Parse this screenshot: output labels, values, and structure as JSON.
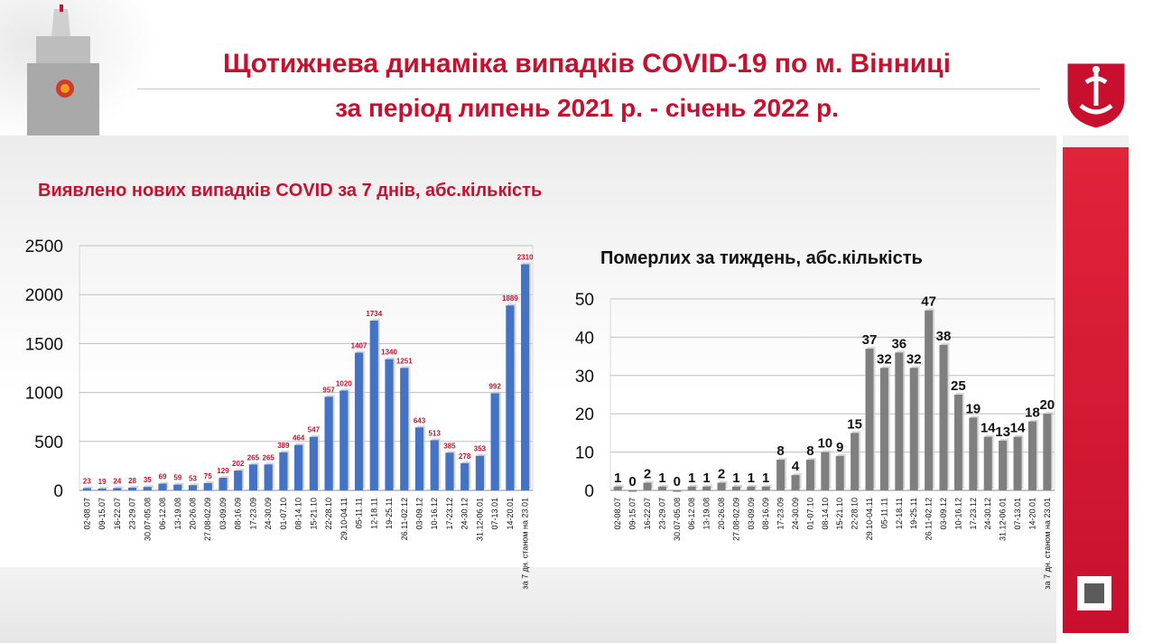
{
  "slide": {
    "title_line1": "Щотижнева динаміка випадків COVID-19 по м. Вінниці",
    "title_line2": "за період липень 2021 р. - січень 2022 р."
  },
  "chart_data": [
    {
      "type": "bar",
      "title": "Виявлено нових випадків COVID за 7 днів, абс.кількість",
      "color": "#4472c4",
      "label_color": "#c8102e",
      "ylim": [
        0,
        2500
      ],
      "yticks": [
        "0",
        "500",
        "1000",
        "1500",
        "2000",
        "2500"
      ],
      "grid": true,
      "categories": [
        "02-08.07",
        "09-15.07",
        "16-22.07",
        "23-29.07",
        "30.07-05.08",
        "06-12.08",
        "13-19.08",
        "20-26.08",
        "27.08-02.09",
        "03-09.09",
        "08-16.09",
        "17-23.09",
        "24-30.09",
        "01-07.10",
        "08-14.10",
        "15-21.10",
        "22-28.10",
        "29.10-04.11",
        "05-11.11",
        "12-18.11",
        "19-25.11",
        "26.11-02.12",
        "03-09.12",
        "10-16.12",
        "17-23.12",
        "24-30.12",
        "31.12-06.01",
        "07-13.01",
        "14-20.01",
        "за 7 дн. станом на 23.01"
      ],
      "values": [
        23,
        19,
        24,
        28,
        35,
        69,
        59,
        53,
        75,
        129,
        202,
        265,
        265,
        389,
        464,
        547,
        957,
        1020,
        1407,
        1734,
        1340,
        1251,
        643,
        513,
        385,
        278,
        353,
        992,
        1889,
        2310
      ]
    },
    {
      "type": "bar",
      "title": "Померлих за тиждень, абс.кількість",
      "color": "#7f7f7f",
      "label_color": "#111111",
      "ylim": [
        0,
        50
      ],
      "yticks": [
        "0",
        "10",
        "20",
        "30",
        "40",
        "50"
      ],
      "grid": true,
      "categories": [
        "02-08.07",
        "09-15.07",
        "16-22.07",
        "23-29.07",
        "30.07-05.08",
        "06-12.08",
        "13-19.08",
        "20-26.08",
        "27.08-02.09",
        "03-09.09",
        "08-16.09",
        "17-23.09",
        "24-30.09",
        "01-07.10",
        "08-14.10",
        "15-21.10",
        "22-28.10",
        "29.10-04.11",
        "05-11.11",
        "12-18.11",
        "19-25.11",
        "26.11-02.12",
        "03-09.12",
        "10-16.12",
        "17-23.12",
        "24-30.12",
        "31.12-06.01",
        "07-13.01",
        "14-20.01",
        "за 7 дн. станом на 23.01"
      ],
      "values": [
        1,
        0,
        2,
        1,
        0,
        1,
        1,
        2,
        1,
        1,
        1,
        8,
        4,
        8,
        10,
        9,
        15,
        37,
        32,
        36,
        32,
        47,
        38,
        25,
        19,
        14,
        13,
        14,
        18,
        20
      ]
    }
  ]
}
